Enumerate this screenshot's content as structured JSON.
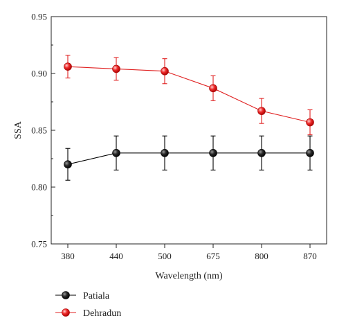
{
  "chart_data": {
    "type": "line",
    "categories": [
      "380",
      "440",
      "500",
      "675",
      "800",
      "870"
    ],
    "xlabel": "Wavelength (nm)",
    "ylabel": "SSA",
    "ylim": [
      0.75,
      0.95
    ],
    "yticks": [
      "0.75",
      "0.80",
      "0.85",
      "0.90",
      "0.95"
    ],
    "grid": false,
    "legend_position": "bottom-left",
    "series": [
      {
        "name": "Patiala",
        "color": "#000000",
        "values": [
          0.82,
          0.83,
          0.83,
          0.83,
          0.83,
          0.83
        ],
        "errors": [
          0.014,
          0.015,
          0.015,
          0.015,
          0.015,
          0.015
        ]
      },
      {
        "name": "Dehradun",
        "color": "#e02020",
        "values": [
          0.906,
          0.904,
          0.902,
          0.887,
          0.867,
          0.857
        ],
        "errors": [
          0.01,
          0.01,
          0.011,
          0.011,
          0.011,
          0.011
        ]
      }
    ]
  }
}
